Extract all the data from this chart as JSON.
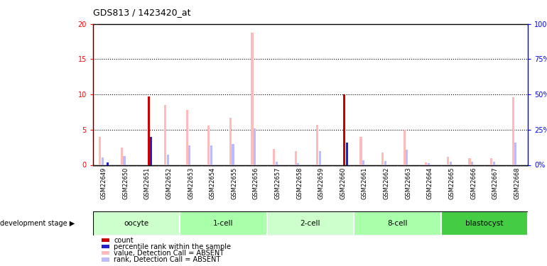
{
  "title": "GDS813 / 1423420_at",
  "samples": [
    "GSM22649",
    "GSM22650",
    "GSM22651",
    "GSM22652",
    "GSM22653",
    "GSM22654",
    "GSM22655",
    "GSM22656",
    "GSM22657",
    "GSM22658",
    "GSM22659",
    "GSM22660",
    "GSM22661",
    "GSM22662",
    "GSM22663",
    "GSM22664",
    "GSM22665",
    "GSM22666",
    "GSM22667",
    "GSM22668"
  ],
  "count_values": [
    0,
    0,
    9.7,
    0,
    0,
    0,
    0,
    0,
    0,
    0,
    0,
    10.0,
    0,
    0,
    0,
    0,
    0,
    0,
    0,
    0
  ],
  "rank_values": [
    0.4,
    0,
    4.0,
    0,
    0,
    0,
    0,
    0,
    0,
    0,
    0,
    3.2,
    0,
    0,
    0,
    0,
    0,
    0,
    0,
    0
  ],
  "value_absent": [
    4.0,
    2.5,
    0,
    8.5,
    7.8,
    5.6,
    6.7,
    18.8,
    2.3,
    2.0,
    5.7,
    0,
    4.0,
    1.8,
    5.0,
    0.4,
    1.2,
    1.0,
    1.0,
    9.6
  ],
  "rank_absent": [
    1.1,
    1.3,
    0,
    1.5,
    2.8,
    2.8,
    3.0,
    5.2,
    0.5,
    0.3,
    2.0,
    0,
    0.7,
    0.6,
    2.2,
    0.3,
    0.5,
    0.5,
    0.5,
    3.2
  ],
  "stages": [
    {
      "label": "oocyte",
      "start": 0,
      "end": 4,
      "color": "#ccffcc"
    },
    {
      "label": "1-cell",
      "start": 4,
      "end": 8,
      "color": "#aaffaa"
    },
    {
      "label": "2-cell",
      "start": 8,
      "end": 12,
      "color": "#ccffcc"
    },
    {
      "label": "8-cell",
      "start": 12,
      "end": 16,
      "color": "#aaffaa"
    },
    {
      "label": "blastocyst",
      "start": 16,
      "end": 20,
      "color": "#44cc44"
    }
  ],
  "ylim_left": [
    0,
    20
  ],
  "ylim_right": [
    0,
    100
  ],
  "yticks_left": [
    0,
    5,
    10,
    15,
    20
  ],
  "yticks_right": [
    0,
    25,
    50,
    75,
    100
  ],
  "color_count": "#cc0000",
  "color_rank": "#2222cc",
  "color_value_absent": "#ffbbbb",
  "color_rank_absent": "#bbbbff",
  "legend_items": [
    {
      "color": "#cc0000",
      "label": "count"
    },
    {
      "color": "#2222cc",
      "label": "percentile rank within the sample"
    },
    {
      "color": "#ffbbbb",
      "label": "value, Detection Call = ABSENT"
    },
    {
      "color": "#bbbbff",
      "label": "rank, Detection Call = ABSENT"
    }
  ]
}
